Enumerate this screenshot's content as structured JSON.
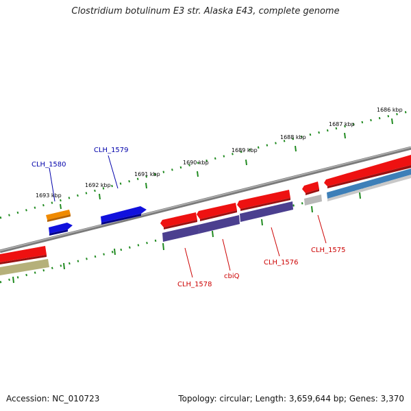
{
  "title": "Clostridium botulinum E3 str. Alaska E43, complete genome",
  "footer": {
    "accession": "Accession: NC_010723",
    "summary": "Topology: circular; Length: 3,659,644 bp; Genes: 3,370"
  },
  "scale": {
    "unit": "kbp",
    "tick_labels": [
      "1693 kbp",
      "1692 kbp",
      "1691 kbp",
      "1690 kbp",
      "1689 kbp",
      "1688 kbp",
      "1687 kbp",
      "1686 kbp"
    ]
  },
  "gene_labels": {
    "clh_1580": "CLH_1580",
    "clh_1579": "CLH_1579",
    "clh_1578": "CLH_1578",
    "cbiq": "cbiQ",
    "clh_1576": "CLH_1576",
    "clh_1575": "CLH_1575"
  },
  "colors": {
    "backbone": "#8a8a8a",
    "tick_marks": "#1f8a1f",
    "label_top_strand": "#0000aa",
    "label_bottom_strand": "#cc0000",
    "gene_red": "#ee1111",
    "gene_blue": "#1111dd",
    "gene_orange": "#f08a00",
    "gene_purple": "#4b3f8f",
    "gene_steel_blue": "#3d7fb8",
    "gene_olive": "#b5b07a",
    "gene_grey": "#b8b8b8"
  }
}
